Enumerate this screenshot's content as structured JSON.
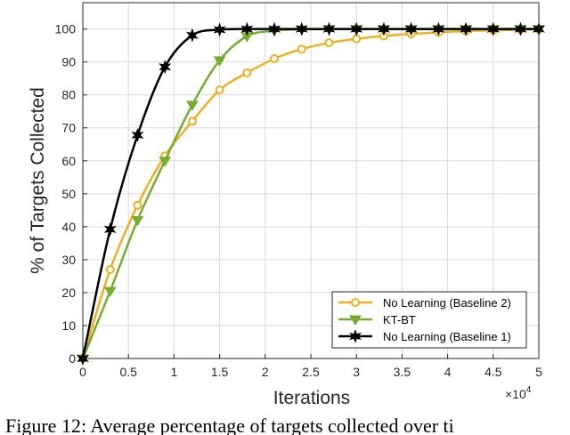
{
  "chart_data": {
    "type": "line",
    "xlabel": "Iterations",
    "ylabel": "% of Targets Collected",
    "x_multiplier_label": "×10",
    "x_multiplier_exponent": "4",
    "xlim": [
      0,
      50000
    ],
    "ylim": [
      0,
      108
    ],
    "grid": true,
    "legend_position": "bottom-right",
    "x_ticks": [
      0,
      5000,
      10000,
      15000,
      20000,
      25000,
      30000,
      35000,
      40000,
      45000,
      50000
    ],
    "x_tick_labels": [
      "0",
      "0.5",
      "1",
      "1.5",
      "2",
      "2.5",
      "3",
      "3.5",
      "4",
      "4.5",
      "5"
    ],
    "y_ticks": [
      0,
      10,
      20,
      30,
      40,
      50,
      60,
      70,
      80,
      90,
      100
    ],
    "y_tick_labels": [
      "0",
      "10",
      "20",
      "30",
      "40",
      "50",
      "60",
      "70",
      "80",
      "90",
      "100"
    ],
    "series": [
      {
        "name": "No Learning (Baseline 2)",
        "color": "#EDB120",
        "marker": "circle",
        "x": [
          0,
          3000,
          6000,
          9000,
          12000,
          15000,
          18000,
          21000,
          24000,
          27000,
          30000,
          33000,
          36000,
          39000,
          42000,
          45000,
          48000,
          50000
        ],
        "y": [
          0,
          27,
          46.5,
          61.5,
          72,
          81.5,
          86.7,
          91,
          93.9,
          95.8,
          97,
          97.9,
          98.5,
          99,
          99.4,
          99.6,
          99.8,
          99.9
        ]
      },
      {
        "name": "KT-BT",
        "color": "#77AC30",
        "marker": "triangle-down",
        "x": [
          0,
          3000,
          6000,
          9000,
          12000,
          15000,
          18000,
          21000,
          24000,
          27000,
          30000,
          33000,
          36000,
          39000,
          42000,
          45000,
          48000,
          50000
        ],
        "y": [
          0,
          20.5,
          42,
          60,
          77,
          90.5,
          97.8,
          99.5,
          99.9,
          100,
          100,
          100,
          100,
          100,
          100,
          100,
          100,
          100
        ]
      },
      {
        "name": "No Learning (Baseline 1)",
        "color": "#000000",
        "marker": "hexagram",
        "x": [
          0,
          3000,
          6000,
          9000,
          12000,
          15000,
          18000,
          21000,
          24000,
          27000,
          30000,
          33000,
          36000,
          39000,
          42000,
          45000,
          48000,
          50000
        ],
        "y": [
          0,
          39.2,
          67.8,
          88.5,
          98.1,
          99.8,
          100,
          100,
          100,
          100,
          100,
          100,
          100,
          100,
          100,
          100,
          100,
          100
        ]
      }
    ]
  },
  "caption": "Figure 12: Average percentage of targets collected over ti"
}
